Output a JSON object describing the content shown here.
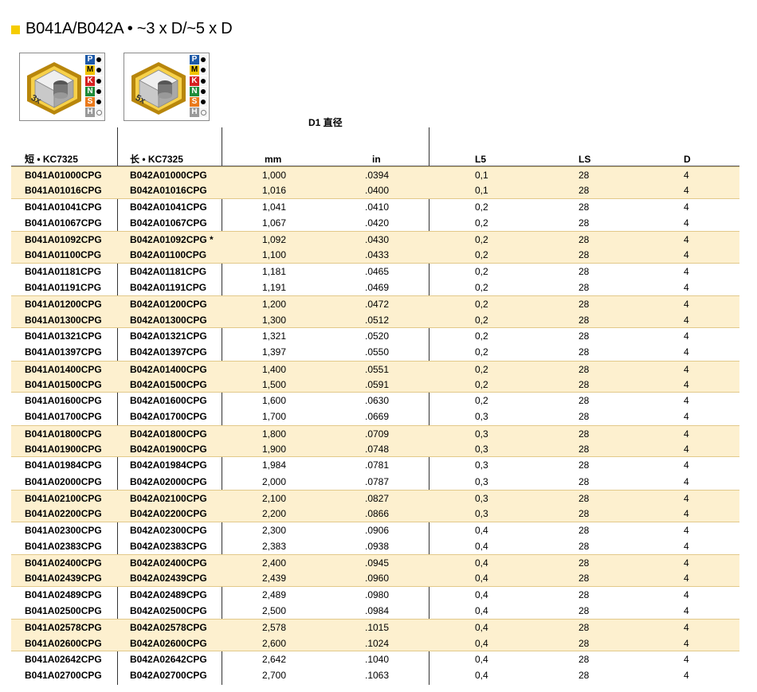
{
  "title": "B041A/B042A • ~3 x D/~5 x D",
  "badges": [
    {
      "label": "3x"
    },
    {
      "label": "5x"
    }
  ],
  "iso_groups": [
    {
      "letter": "P",
      "color": "#1e5aa8",
      "filled": true
    },
    {
      "letter": "M",
      "color": "#f2c500",
      "filled": true
    },
    {
      "letter": "K",
      "color": "#d62020",
      "filled": true
    },
    {
      "letter": "N",
      "color": "#1f8c3a",
      "filled": true
    },
    {
      "letter": "S",
      "color": "#ea7a1c",
      "filled": true
    },
    {
      "letter": "H",
      "color": "#9a9a9a",
      "filled": false
    }
  ],
  "group_label": "D1 直径",
  "headers": {
    "short": "短 • KC7325",
    "long": "长 • KC7325",
    "mm": "mm",
    "in": "in",
    "l5": "L5",
    "ls": "LS",
    "d": "D"
  },
  "rows": [
    {
      "short": "B041A01000CPG",
      "long": "B042A01000CPG",
      "mm": "1,000",
      "in": ".0394",
      "l5": "0,1",
      "ls": "28",
      "d": "4"
    },
    {
      "short": "B041A01016CPG",
      "long": "B042A01016CPG",
      "mm": "1,016",
      "in": ".0400",
      "l5": "0,1",
      "ls": "28",
      "d": "4"
    },
    {
      "short": "B041A01041CPG",
      "long": "B042A01041CPG",
      "mm": "1,041",
      "in": ".0410",
      "l5": "0,2",
      "ls": "28",
      "d": "4"
    },
    {
      "short": "B041A01067CPG",
      "long": "B042A01067CPG",
      "mm": "1,067",
      "in": ".0420",
      "l5": "0,2",
      "ls": "28",
      "d": "4"
    },
    {
      "short": "B041A01092CPG",
      "long": "B042A01092CPG *",
      "mm": "1,092",
      "in": ".0430",
      "l5": "0,2",
      "ls": "28",
      "d": "4"
    },
    {
      "short": "B041A01100CPG",
      "long": "B042A01100CPG",
      "mm": "1,100",
      "in": ".0433",
      "l5": "0,2",
      "ls": "28",
      "d": "4"
    },
    {
      "short": "B041A01181CPG",
      "long": "B042A01181CPG",
      "mm": "1,181",
      "in": ".0465",
      "l5": "0,2",
      "ls": "28",
      "d": "4"
    },
    {
      "short": "B041A01191CPG",
      "long": "B042A01191CPG",
      "mm": "1,191",
      "in": ".0469",
      "l5": "0,2",
      "ls": "28",
      "d": "4"
    },
    {
      "short": "B041A01200CPG",
      "long": "B042A01200CPG",
      "mm": "1,200",
      "in": ".0472",
      "l5": "0,2",
      "ls": "28",
      "d": "4"
    },
    {
      "short": "B041A01300CPG",
      "long": "B042A01300CPG",
      "mm": "1,300",
      "in": ".0512",
      "l5": "0,2",
      "ls": "28",
      "d": "4"
    },
    {
      "short": "B041A01321CPG",
      "long": "B042A01321CPG",
      "mm": "1,321",
      "in": ".0520",
      "l5": "0,2",
      "ls": "28",
      "d": "4"
    },
    {
      "short": "B041A01397CPG",
      "long": "B042A01397CPG",
      "mm": "1,397",
      "in": ".0550",
      "l5": "0,2",
      "ls": "28",
      "d": "4"
    },
    {
      "short": "B041A01400CPG",
      "long": "B042A01400CPG",
      "mm": "1,400",
      "in": ".0551",
      "l5": "0,2",
      "ls": "28",
      "d": "4"
    },
    {
      "short": "B041A01500CPG",
      "long": "B042A01500CPG",
      "mm": "1,500",
      "in": ".0591",
      "l5": "0,2",
      "ls": "28",
      "d": "4"
    },
    {
      "short": "B041A01600CPG",
      "long": "B042A01600CPG",
      "mm": "1,600",
      "in": ".0630",
      "l5": "0,2",
      "ls": "28",
      "d": "4"
    },
    {
      "short": "B041A01700CPG",
      "long": "B042A01700CPG",
      "mm": "1,700",
      "in": ".0669",
      "l5": "0,3",
      "ls": "28",
      "d": "4"
    },
    {
      "short": "B041A01800CPG",
      "long": "B042A01800CPG",
      "mm": "1,800",
      "in": ".0709",
      "l5": "0,3",
      "ls": "28",
      "d": "4"
    },
    {
      "short": "B041A01900CPG",
      "long": "B042A01900CPG",
      "mm": "1,900",
      "in": ".0748",
      "l5": "0,3",
      "ls": "28",
      "d": "4"
    },
    {
      "short": "B041A01984CPG",
      "long": "B042A01984CPG",
      "mm": "1,984",
      "in": ".0781",
      "l5": "0,3",
      "ls": "28",
      "d": "4"
    },
    {
      "short": "B041A02000CPG",
      "long": "B042A02000CPG",
      "mm": "2,000",
      "in": ".0787",
      "l5": "0,3",
      "ls": "28",
      "d": "4"
    },
    {
      "short": "B041A02100CPG",
      "long": "B042A02100CPG",
      "mm": "2,100",
      "in": ".0827",
      "l5": "0,3",
      "ls": "28",
      "d": "4"
    },
    {
      "short": "B041A02200CPG",
      "long": "B042A02200CPG",
      "mm": "2,200",
      "in": ".0866",
      "l5": "0,3",
      "ls": "28",
      "d": "4"
    },
    {
      "short": "B041A02300CPG",
      "long": "B042A02300CPG",
      "mm": "2,300",
      "in": ".0906",
      "l5": "0,4",
      "ls": "28",
      "d": "4"
    },
    {
      "short": "B041A02383CPG",
      "long": "B042A02383CPG",
      "mm": "2,383",
      "in": ".0938",
      "l5": "0,4",
      "ls": "28",
      "d": "4"
    },
    {
      "short": "B041A02400CPG",
      "long": "B042A02400CPG",
      "mm": "2,400",
      "in": ".0945",
      "l5": "0,4",
      "ls": "28",
      "d": "4"
    },
    {
      "short": "B041A02439CPG",
      "long": "B042A02439CPG",
      "mm": "2,439",
      "in": ".0960",
      "l5": "0,4",
      "ls": "28",
      "d": "4"
    },
    {
      "short": "B041A02489CPG",
      "long": "B042A02489CPG",
      "mm": "2,489",
      "in": ".0980",
      "l5": "0,4",
      "ls": "28",
      "d": "4"
    },
    {
      "short": "B041A02500CPG",
      "long": "B042A02500CPG",
      "mm": "2,500",
      "in": ".0984",
      "l5": "0,4",
      "ls": "28",
      "d": "4"
    },
    {
      "short": "B041A02578CPG",
      "long": "B042A02578CPG",
      "mm": "2,578",
      "in": ".1015",
      "l5": "0,4",
      "ls": "28",
      "d": "4"
    },
    {
      "short": "B041A02600CPG",
      "long": "B042A02600CPG",
      "mm": "2,600",
      "in": ".1024",
      "l5": "0,4",
      "ls": "28",
      "d": "4"
    },
    {
      "short": "B041A02642CPG",
      "long": "B042A02642CPG",
      "mm": "2,642",
      "in": ".1040",
      "l5": "0,4",
      "ls": "28",
      "d": "4"
    },
    {
      "short": "B041A02700CPG",
      "long": "B042A02700CPG",
      "mm": "2,700",
      "in": ".1063",
      "l5": "0,4",
      "ls": "28",
      "d": "4"
    }
  ]
}
